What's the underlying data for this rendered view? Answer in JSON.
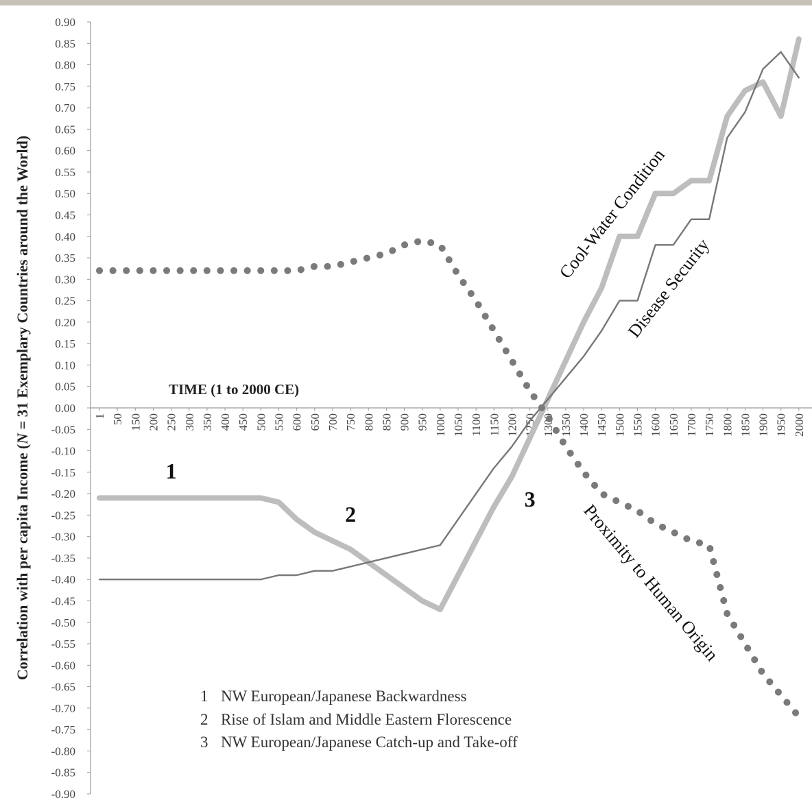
{
  "chart_data": {
    "type": "line",
    "title": "",
    "xlabel": "TIME (1 to 2000 CE)",
    "ylabel_parts": [
      "Correlation with per capita Income (",
      "N",
      " = 31 Exemplary Countries around the World)"
    ],
    "ylim": [
      -0.9,
      0.9
    ],
    "y_ticks": [
      "0.90",
      "0.85",
      "0.80",
      "0.75",
      "0.70",
      "0.65",
      "0.60",
      "0.55",
      "0.50",
      "0.45",
      "0.40",
      "0.35",
      "0.30",
      "0.25",
      "0.20",
      "0.15",
      "0.10",
      "0.05",
      "0.00",
      "-0.05",
      "-0.10",
      "-0.15",
      "-0.20",
      "-0.25",
      "-0.30",
      "-0.35",
      "-0.40",
      "-0.45",
      "-0.50",
      "-0.55",
      "-0.60",
      "-0.65",
      "-0.70",
      "-0.75",
      "-0.80",
      "-0.85",
      "-0.90"
    ],
    "x": [
      "1",
      "50",
      "150",
      "200",
      "250",
      "300",
      "350",
      "400",
      "450",
      "500",
      "550",
      "600",
      "650",
      "700",
      "750",
      "800",
      "850",
      "900",
      "950",
      "1000",
      "1050",
      "1100",
      "1150",
      "1200",
      "1250",
      "1300",
      "1350",
      "1400",
      "1450",
      "1500",
      "1550",
      "1600",
      "1650",
      "1700",
      "1750",
      "1800",
      "1850",
      "1900",
      "1950",
      "2000"
    ],
    "grid": false,
    "series": [
      {
        "name": "Cool-Water Condition",
        "style": "thick-light",
        "color": "#bdbdbd",
        "values": [
          -0.21,
          -0.21,
          -0.21,
          -0.21,
          -0.21,
          -0.21,
          -0.21,
          -0.21,
          -0.21,
          -0.21,
          -0.22,
          -0.26,
          -0.29,
          -0.31,
          -0.33,
          -0.36,
          -0.39,
          -0.42,
          -0.45,
          -0.47,
          -0.39,
          -0.31,
          -0.23,
          -0.16,
          -0.07,
          0.02,
          0.11,
          0.2,
          0.28,
          0.4,
          0.4,
          0.5,
          0.5,
          0.53,
          0.53,
          0.68,
          0.74,
          0.76,
          0.68,
          0.86
        ]
      },
      {
        "name": "Disease Security",
        "style": "thin-dark",
        "color": "#777777",
        "values": [
          -0.4,
          -0.4,
          -0.4,
          -0.4,
          -0.4,
          -0.4,
          -0.4,
          -0.4,
          -0.4,
          -0.4,
          -0.39,
          -0.39,
          -0.38,
          -0.38,
          -0.37,
          -0.36,
          -0.35,
          -0.34,
          -0.33,
          -0.32,
          -0.26,
          -0.2,
          -0.14,
          -0.09,
          -0.03,
          0.02,
          0.07,
          0.12,
          0.18,
          0.25,
          0.25,
          0.38,
          0.38,
          0.44,
          0.44,
          0.63,
          0.69,
          0.79,
          0.83,
          0.77
        ]
      },
      {
        "name": "Proximity to Human Origin",
        "style": "dotted",
        "color": "#7a7a7a",
        "values": [
          0.32,
          0.32,
          0.32,
          0.32,
          0.32,
          0.32,
          0.32,
          0.32,
          0.32,
          0.32,
          0.32,
          0.32,
          0.33,
          0.33,
          0.34,
          0.35,
          0.36,
          0.38,
          0.39,
          0.38,
          0.31,
          0.25,
          0.18,
          0.11,
          0.04,
          -0.02,
          -0.09,
          -0.15,
          -0.2,
          -0.22,
          -0.24,
          -0.27,
          -0.29,
          -0.31,
          -0.32,
          -0.48,
          -0.55,
          -0.62,
          -0.67,
          -0.72
        ]
      }
    ],
    "annotations": [
      {
        "text": "1",
        "x": "250",
        "y": -0.165
      },
      {
        "text": "2",
        "x": "750",
        "y": -0.265
      },
      {
        "text": "3",
        "x": "1250",
        "y": -0.23
      }
    ],
    "legend_notes": [
      {
        "num": "1",
        "text": "NW European/Japanese Backwardness"
      },
      {
        "num": "2",
        "text": "Rise of Islam and Middle Eastern Florescence"
      },
      {
        "num": "3",
        "text": "NW European/Japanese Catch-up and Take-off"
      }
    ]
  }
}
